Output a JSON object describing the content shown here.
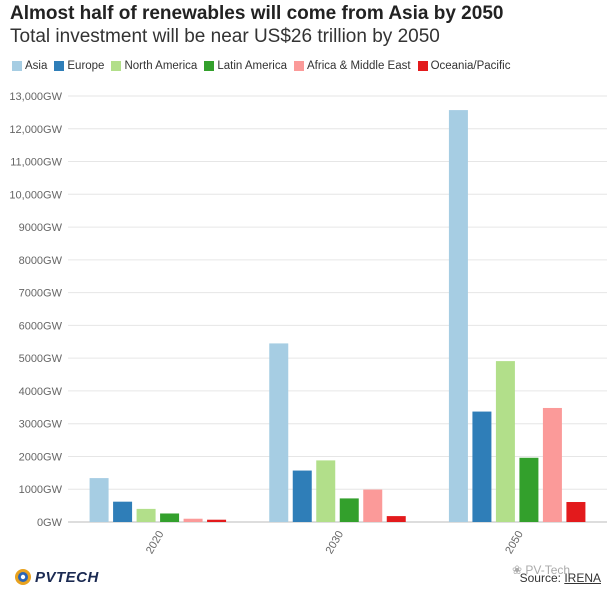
{
  "chart_data": {
    "type": "bar",
    "title": "Almost half of renewables will come from Asia by 2050",
    "subtitle": "Total investment will be near US$26 trillion by 2050",
    "categories": [
      "2020",
      "2030",
      "2050"
    ],
    "series": [
      {
        "name": "Asia",
        "color": "#a6cde3",
        "values": [
          1340,
          5450,
          12570
        ]
      },
      {
        "name": "Europe",
        "color": "#2f7eb8",
        "values": [
          620,
          1570,
          3370
        ]
      },
      {
        "name": "North America",
        "color": "#b2df8a",
        "values": [
          400,
          1880,
          4910
        ]
      },
      {
        "name": "Latin America",
        "color": "#33a02c",
        "values": [
          260,
          720,
          1960
        ]
      },
      {
        "name": "Africa & Middle East",
        "color": "#fb9a99",
        "values": [
          100,
          990,
          3480
        ]
      },
      {
        "name": "Oceania/Pacific",
        "color": "#e31a1c",
        "values": [
          70,
          180,
          610
        ]
      }
    ],
    "yticks": [
      "0GW",
      "1000GW",
      "2000GW",
      "3000GW",
      "4000GW",
      "5000GW",
      "6000GW",
      "7000GW",
      "8000GW",
      "9000GW",
      "10,000GW",
      "11,000GW",
      "12,000GW",
      "13,000GW"
    ],
    "ylim": [
      0,
      13000
    ],
    "grid": true,
    "legend_position": "top-left"
  },
  "footer": {
    "logo_text": "PVTECH",
    "source_prefix": "Source: ",
    "source_link": "IRENA",
    "watermark": "PV-Tech"
  }
}
